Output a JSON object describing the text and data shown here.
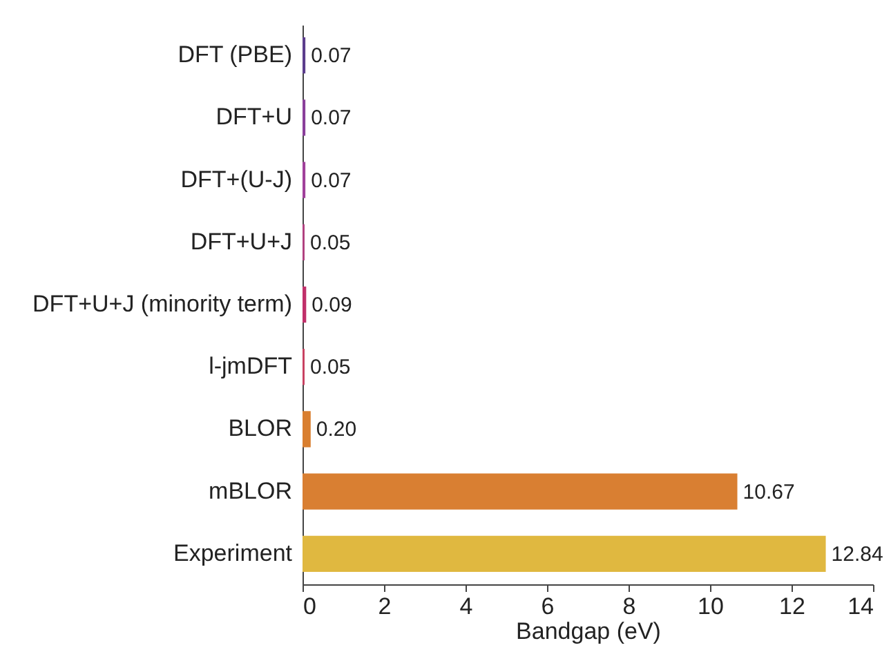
{
  "chart_data": {
    "type": "bar",
    "orientation": "horizontal",
    "xlabel": "Bandgap (eV)",
    "categories": [
      "DFT (PBE)",
      "DFT+U",
      "DFT+(U-J)",
      "DFT+U+J",
      "DFT+U+J (minority term)",
      "l-jmDFT",
      "BLOR",
      "mBLOR",
      "Experiment"
    ],
    "values": [
      0.07,
      0.07,
      0.07,
      0.05,
      0.09,
      0.05,
      0.2,
      10.67,
      12.84
    ],
    "colors": [
      "#5b3d8c",
      "#8a3f9a",
      "#a0409a",
      "#b0407f",
      "#c0306a",
      "#c84060",
      "#d97f30",
      "#d97f32",
      "#e0b840"
    ],
    "value_labels": [
      "0.07",
      "0.07",
      "0.07",
      "0.05",
      "0.09",
      "0.05",
      "0.20",
      "10.67",
      "12.84"
    ],
    "xlim": [
      0,
      14
    ],
    "xticks": [
      0,
      2,
      4,
      6,
      8,
      10,
      12,
      14
    ],
    "grid": false
  }
}
